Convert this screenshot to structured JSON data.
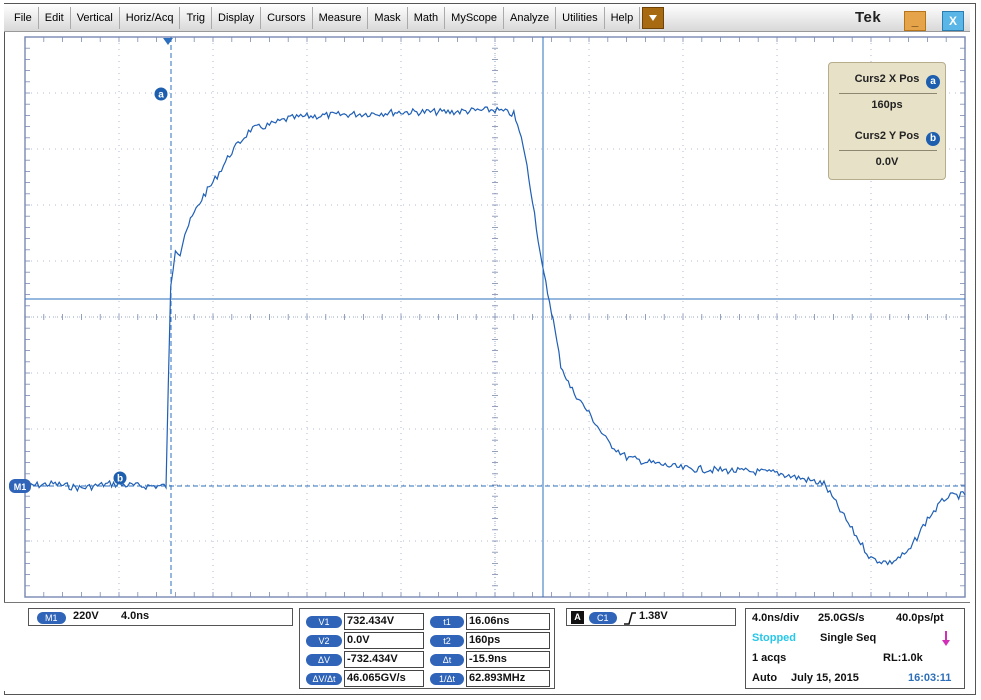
{
  "menu": {
    "items": [
      "File",
      "Edit",
      "Vertical",
      "Horiz/Acq",
      "Trig",
      "Display",
      "Cursors",
      "Measure",
      "Mask",
      "Math",
      "MyScope",
      "Analyze",
      "Utilities",
      "Help"
    ],
    "dropdown_icon": "chevron-down-icon"
  },
  "window": {
    "logo": "Tek",
    "minimize_label": "_",
    "close_label": "X",
    "minimize_color": "#e6a44a",
    "close_color": "#5ab6e6"
  },
  "cursor_readout": {
    "x_label": "Curs2 X Pos",
    "x_marker": "a",
    "x_value": "160ps",
    "y_label": "Curs2 Y Pos",
    "y_marker": "b",
    "y_value": "0.0V"
  },
  "markers": {
    "cursor_a": "a",
    "cursor_b": "b",
    "trace_ref": "M1"
  },
  "colors": {
    "trace": "#1f5fb5",
    "grid": "#9aa8c8",
    "cursor": "#2c6fbe",
    "pill": "#2f64b8",
    "status_stopped": "#27c7e8",
    "arrow": "#d12fb7"
  },
  "math_channel": {
    "label": "M1",
    "scale": "220V",
    "time": "4.0ns"
  },
  "cursor_measurements": {
    "rows": [
      {
        "label": "V1",
        "value": "732.434V",
        "tlabel": "t1",
        "tvalue": "16.06ns"
      },
      {
        "label": "V2",
        "value": "0.0V",
        "tlabel": "t2",
        "tvalue": "160ps"
      },
      {
        "label": "ΔV",
        "value": "-732.434V",
        "tlabel": "Δt",
        "tvalue": "-15.9ns"
      },
      {
        "label": "ΔV/Δt",
        "value": "46.065GV/s",
        "tlabel": "1/Δt",
        "tvalue": "62.893MHz"
      }
    ]
  },
  "trigger": {
    "mode": "A",
    "source": "C1",
    "level": "1.38V"
  },
  "acquisition": {
    "timebase": "4.0ns/div",
    "sample_rate": "25.0GS/s",
    "resolution": "40.0ps/pt",
    "status": "Stopped",
    "sequence": "Single Seq",
    "acqs": "1 acqs",
    "record_length": "RL:1.0k",
    "mode": "Auto",
    "date": "July 15, 2015",
    "time": "16:03:11"
  },
  "waveform": {
    "description_values": "normalized amplitude relative to baseline (0) and peak (1) across 10 horizontal divisions",
    "t": [
      0,
      0.3,
      0.6,
      0.9,
      1.2,
      1.5,
      1.55,
      1.6,
      1.65,
      1.7,
      1.8,
      1.9,
      2.0,
      2.2,
      2.4,
      2.6,
      2.8,
      3.0,
      3.5,
      4.0,
      4.5,
      5.0,
      5.2,
      5.3,
      5.4,
      5.5,
      5.6,
      5.7,
      5.8,
      6.0,
      6.2,
      6.4,
      6.6,
      7.0,
      7.5,
      8.0,
      8.5,
      8.8,
      9.0,
      9.2,
      9.4,
      9.6,
      9.8,
      10.0
    ],
    "v": [
      0.0,
      0.01,
      -0.01,
      0.01,
      0.0,
      0.0,
      0.9,
      1.08,
      1.06,
      1.15,
      1.24,
      1.32,
      1.38,
      1.52,
      1.62,
      1.64,
      1.67,
      1.68,
      1.69,
      1.7,
      1.7,
      1.71,
      1.69,
      1.55,
      1.3,
      1.0,
      0.8,
      0.55,
      0.45,
      0.33,
      0.2,
      0.13,
      0.11,
      0.08,
      0.07,
      0.06,
      0.01,
      -0.2,
      -0.33,
      -0.35,
      -0.3,
      -0.15,
      -0.05,
      -0.04
    ]
  }
}
